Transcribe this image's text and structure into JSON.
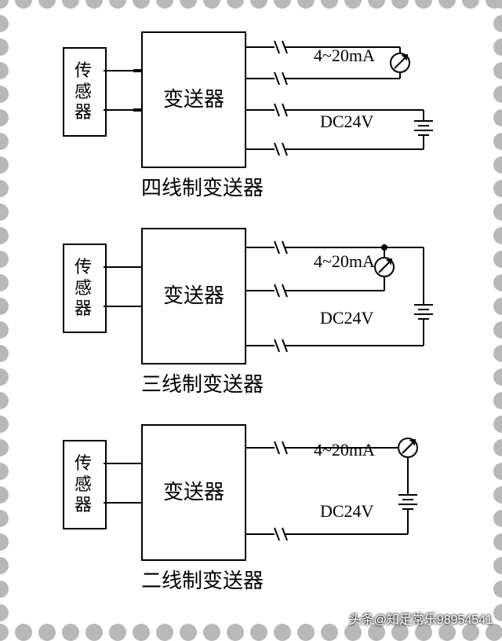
{
  "border": {
    "perforation_color": "#b8b8b8",
    "perforation_diameter": 22,
    "spacing": 30
  },
  "labels": {
    "sensor": "传感器",
    "transmitter": "变送器",
    "signal": "4~20mA",
    "power": "DC24V"
  },
  "diagrams": [
    {
      "caption": "四线制变送器",
      "wires_out": 4,
      "shared_return": false
    },
    {
      "caption": "三线制变送器",
      "wires_out": 3,
      "shared_return": true
    },
    {
      "caption": "二线制变送器",
      "wires_out": 2,
      "shared_return": true
    }
  ],
  "styling": {
    "stroke": "#000000",
    "stroke_width": 2,
    "font_family": "SimSun",
    "caption_fontsize": 26,
    "label_fontsize": 22,
    "box_border": 2,
    "meter_radius": 11,
    "battery_long": 22,
    "battery_short": 12
  },
  "attribution": "头条@知足常乐98954541"
}
